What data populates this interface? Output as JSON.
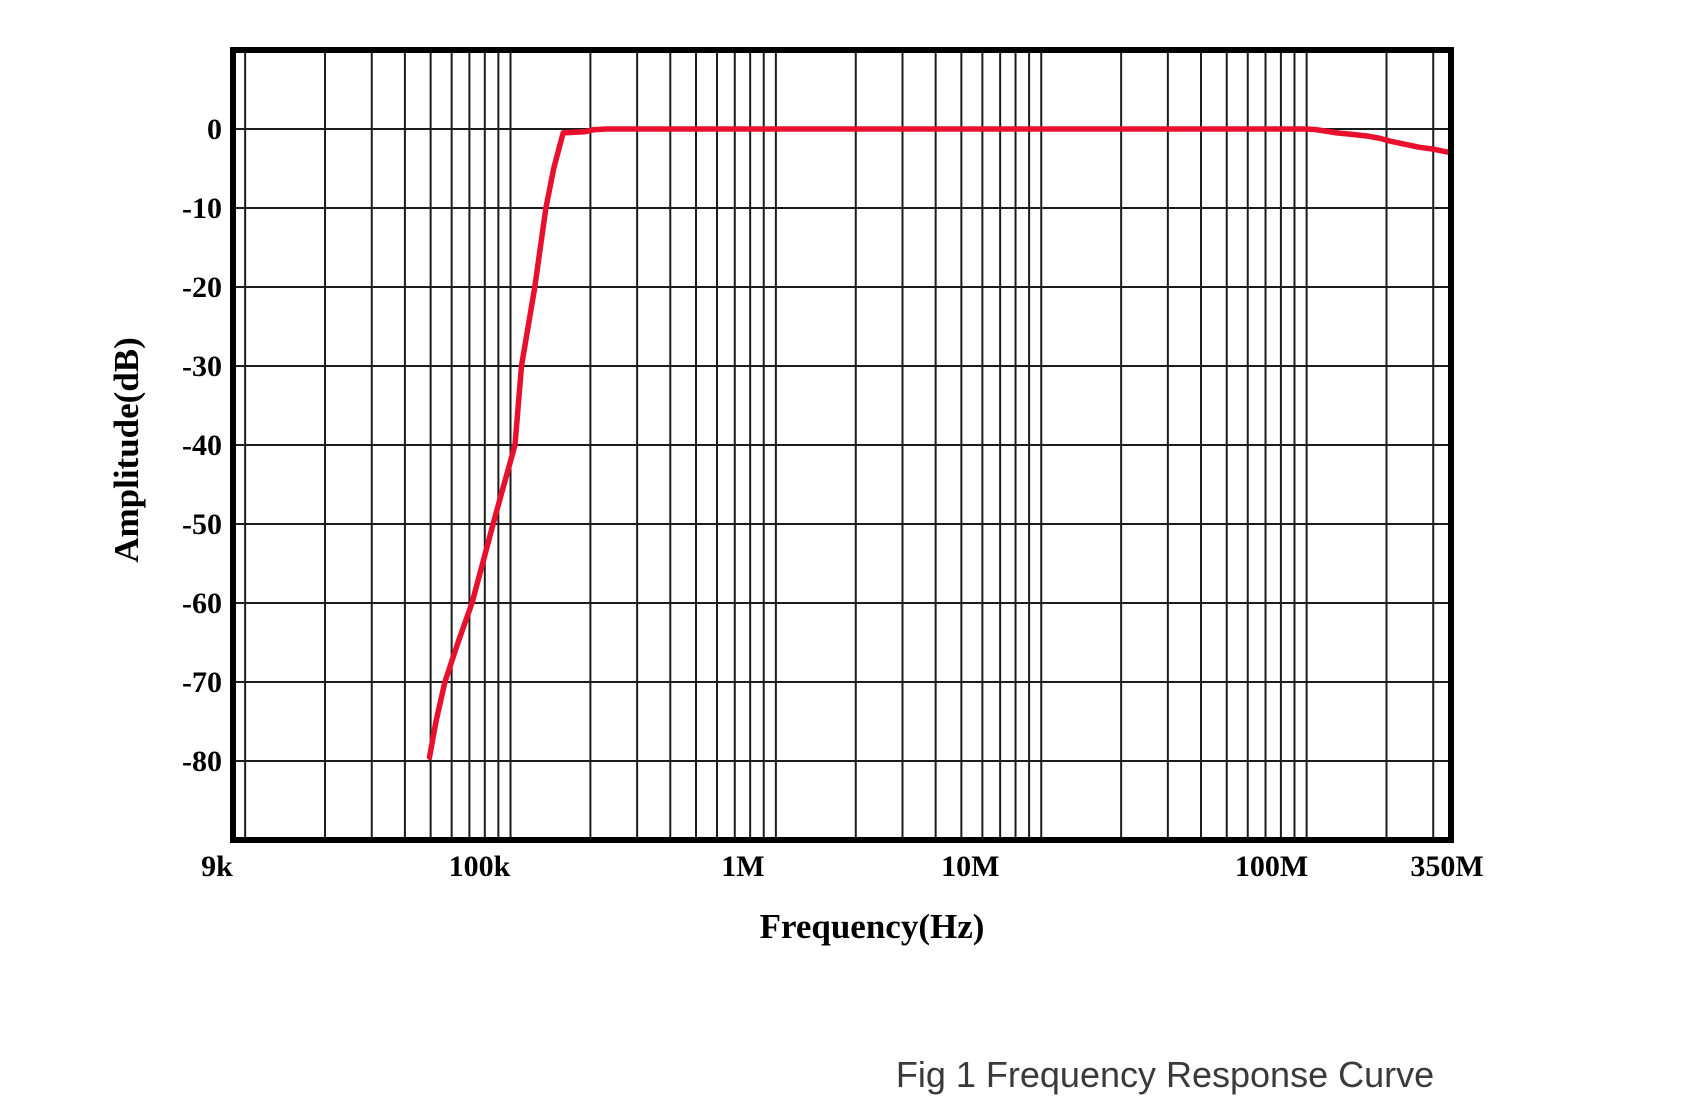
{
  "figure": {
    "caption": "Fig 1 Frequency Response Curve"
  },
  "chart_data": {
    "type": "line",
    "title": "",
    "xlabel": "Frequency(Hz)",
    "ylabel": "Amplitude(dB)",
    "x_scale": "log",
    "x_unit": "Hz",
    "y_unit": "dB",
    "xlim": [
      9000,
      350000000
    ],
    "ylim": [
      -90,
      10
    ],
    "grid": true,
    "y_gridline_step_db": 10,
    "x_ticks": [
      {
        "label": "9k",
        "hz": 9000
      },
      {
        "label": "100k",
        "hz": 100000
      },
      {
        "label": "1M",
        "hz": 1000000
      },
      {
        "label": "10M",
        "hz": 10000000
      },
      {
        "label": "100M",
        "hz": 100000000
      },
      {
        "label": "350M",
        "hz": 350000000
      }
    ],
    "y_ticks": [
      {
        "label": "0",
        "db": 0
      },
      {
        "label": "-10",
        "db": -10
      },
      {
        "label": "-20",
        "db": -20
      },
      {
        "label": "-30",
        "db": -30
      },
      {
        "label": "-40",
        "db": -40
      },
      {
        "label": "-50",
        "db": -50
      },
      {
        "label": "-60",
        "db": -60
      },
      {
        "label": "-70",
        "db": -70
      },
      {
        "label": "-80",
        "db": -80
      }
    ],
    "series": [
      {
        "name": "Frequency Response",
        "color": "#e8102d",
        "points_hz_db": [
          [
            49500,
            -79.5
          ],
          [
            52400,
            -75
          ],
          [
            56600,
            -70
          ],
          [
            63400,
            -65
          ],
          [
            71600,
            -60
          ],
          [
            78500,
            -55
          ],
          [
            86000,
            -50
          ],
          [
            94500,
            -45
          ],
          [
            104000,
            -40
          ],
          [
            110000,
            -30
          ],
          [
            123500,
            -20
          ],
          [
            136000,
            -10
          ],
          [
            145500,
            -5
          ],
          [
            155000,
            -1.5
          ],
          [
            158000,
            -0.5
          ],
          [
            190000,
            -0.35
          ],
          [
            205000,
            -0.1
          ],
          [
            230000,
            0
          ],
          [
            1000000,
            0
          ],
          [
            10000000,
            0
          ],
          [
            100000000,
            0
          ],
          [
            108000000,
            -0.08
          ],
          [
            120000000,
            -0.3
          ],
          [
            130000000,
            -0.5
          ],
          [
            150000000,
            -0.7
          ],
          [
            170000000,
            -0.9
          ],
          [
            190000000,
            -1.2
          ],
          [
            210000000,
            -1.6
          ],
          [
            240000000,
            -2.0
          ],
          [
            265000000,
            -2.3
          ],
          [
            300000000,
            -2.55
          ],
          [
            325000000,
            -2.8
          ],
          [
            350000000,
            -3.0
          ]
        ]
      }
    ]
  }
}
